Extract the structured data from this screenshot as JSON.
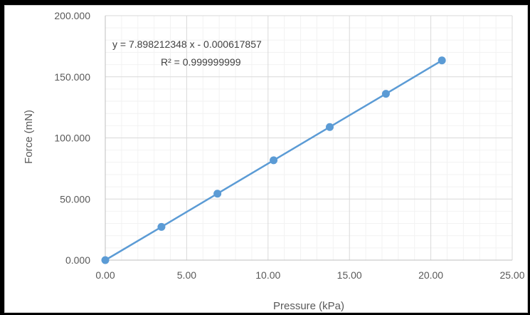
{
  "chart_data": {
    "type": "scatter",
    "title": "",
    "xlabel": "Pressure (kPa)",
    "ylabel": "Force (mN)",
    "xlim": [
      0,
      25
    ],
    "ylim": [
      0,
      200
    ],
    "x_ticks": [
      "0.00",
      "5.00",
      "10.00",
      "15.00",
      "20.00",
      "25.00"
    ],
    "y_ticks": [
      "0.000",
      "50.000",
      "100.000",
      "150.000",
      "200.000"
    ],
    "grid": true,
    "series": [
      {
        "color": "#5b9bd5",
        "points": [
          {
            "x": 0.0,
            "y": 0.0
          },
          {
            "x": 3.45,
            "y": 27.2
          },
          {
            "x": 6.89,
            "y": 54.4
          },
          {
            "x": 10.34,
            "y": 81.7
          },
          {
            "x": 13.79,
            "y": 108.9
          },
          {
            "x": 17.24,
            "y": 136.1
          },
          {
            "x": 20.68,
            "y": 163.4
          }
        ]
      }
    ],
    "trendline": {
      "type": "linear",
      "slope": 7.898212348,
      "intercept": -0.000617857,
      "color": "#5b9bd5",
      "equation": "y = 7.898212348 x - 0.000617857",
      "r_squared": "R² = 0.999999999"
    }
  }
}
